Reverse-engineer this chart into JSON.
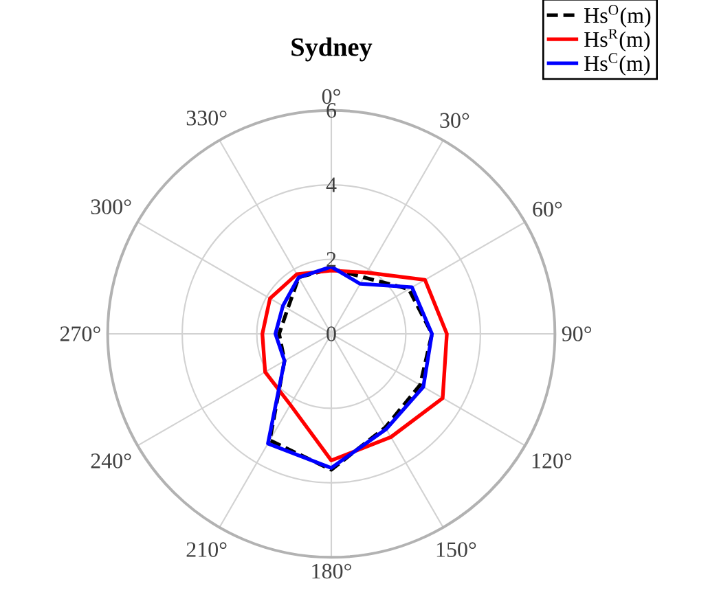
{
  "chart_data": {
    "type": "radar",
    "title": "Sydney",
    "categories": [
      "0°",
      "30°",
      "60°",
      "90°",
      "120°",
      "150°",
      "180°",
      "210°",
      "240°",
      "270°",
      "300°",
      "330°"
    ],
    "ylim": [
      0,
      6
    ],
    "yticks": [
      0,
      2,
      4,
      6
    ],
    "grid": true,
    "legend": "top right",
    "series": [
      {
        "name": "Hs$^{O}$(m)",
        "color": "#000000",
        "line_style": "dashed",
        "values": [
          1.75,
          1.75,
          2.4,
          2.7,
          2.75,
          2.9,
          3.65,
          3.3,
          1.45,
          1.4,
          1.35,
          1.75
        ]
      },
      {
        "name": "Hs$^{R}$(m)",
        "color": "#ff0000",
        "line_style": "solid",
        "values": [
          1.7,
          1.9,
          2.9,
          3.1,
          3.45,
          3.2,
          3.4,
          2.2,
          2.05,
          1.85,
          1.9,
          1.85
        ]
      },
      {
        "name": "Hs$^{C}$(m)",
        "color": "#0000ff",
        "line_style": "solid",
        "values": [
          1.8,
          1.55,
          2.5,
          2.7,
          2.85,
          2.95,
          3.6,
          3.4,
          1.45,
          1.5,
          1.5,
          1.75
        ]
      }
    ]
  }
}
